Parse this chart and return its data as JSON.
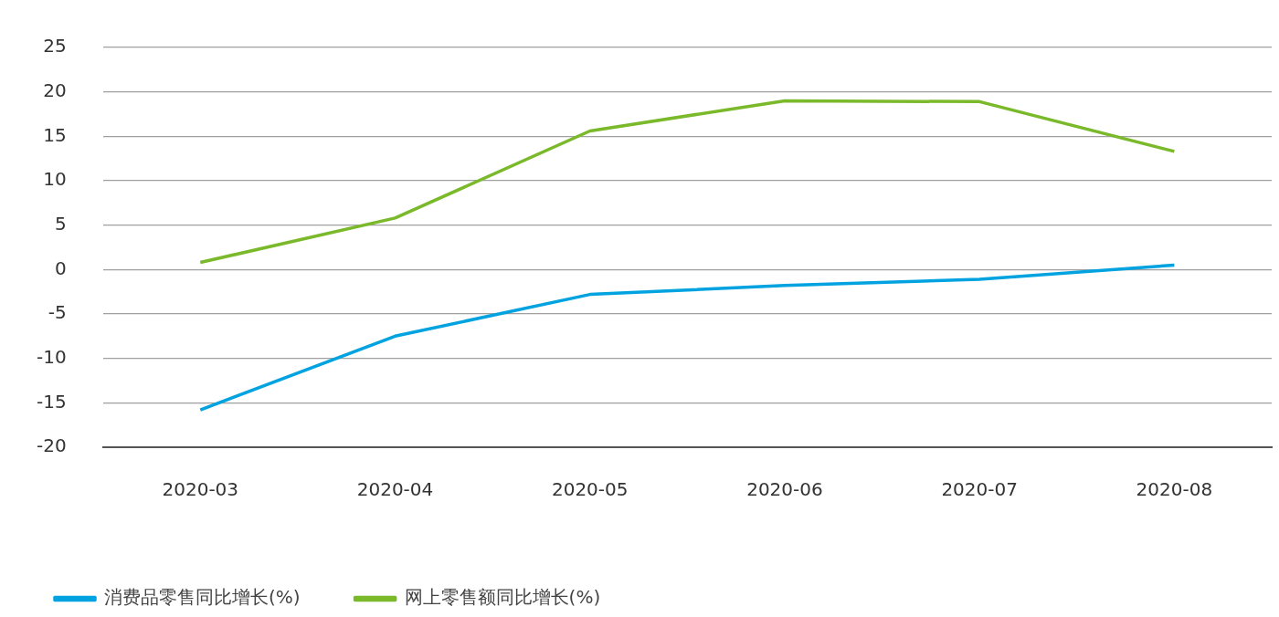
{
  "chart_data": {
    "type": "line",
    "categories": [
      "2020-03",
      "2020-04",
      "2020-05",
      "2020-06",
      "2020-07",
      "2020-08"
    ],
    "series": [
      {
        "name": "消费品零售同比增长(%)",
        "color": "#00a3e0",
        "values": [
          -15.8,
          -7.5,
          -2.8,
          -1.8,
          -1.1,
          0.5
        ]
      },
      {
        "name": "网上零售额同比增长(%)",
        "color": "#7ab929",
        "values": [
          0.8,
          5.8,
          15.6,
          19.0,
          18.9,
          13.3
        ]
      }
    ],
    "ylim": [
      -20,
      25
    ],
    "yticks": [
      -20,
      -15,
      -10,
      -5,
      0,
      5,
      10,
      15,
      20,
      25
    ],
    "grid": "y",
    "legend": "bottom left"
  }
}
